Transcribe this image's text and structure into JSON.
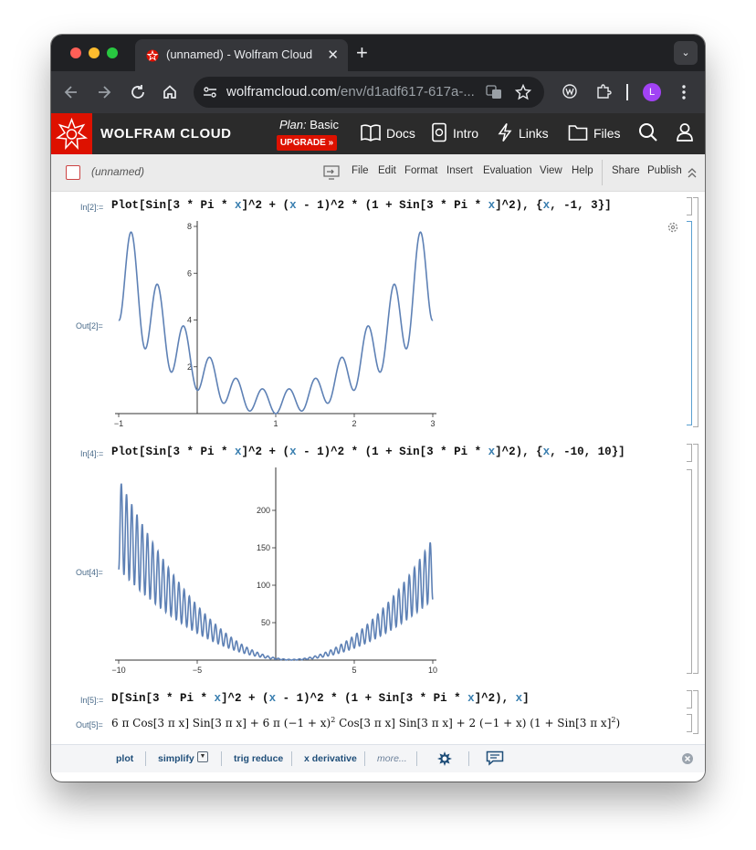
{
  "browser": {
    "tab_title": "(unnamed) - Wolfram Cloud",
    "tab_close": "✕",
    "new_tab": "+",
    "tab_menu": "⌄",
    "url_host": "wolframcloud.com",
    "url_path": "/env/d1adf617-617a-...",
    "profile_initial": "L"
  },
  "header": {
    "brand": "WOLFRAM CLOUD",
    "plan_label": "Plan:",
    "plan_value": "Basic",
    "upgrade": "UPGRADE »",
    "nav": [
      "Docs",
      "Intro",
      "Links",
      "Files"
    ]
  },
  "notebook_bar": {
    "name": "(unnamed)",
    "menus": [
      "File",
      "Edit",
      "Format",
      "Insert",
      "Evaluation",
      "View",
      "Help"
    ],
    "share": "Share",
    "publish": "Publish"
  },
  "cells": {
    "in2_label": "In[2]:=",
    "out2_label": "Out[2]=",
    "in4_label": "In[4]:=",
    "out4_label": "Out[4]=",
    "in5_label": "In[5]:=",
    "out5_label": "Out[5]="
  },
  "chart_data": [
    {
      "type": "line",
      "function": "Sin[3 Pi x]^2 + (x - 1)^2 (1 + Sin[3 Pi x]^2)",
      "x_range": [
        -1,
        3
      ],
      "ylim": [
        0,
        8
      ],
      "x_ticks": [
        "−1",
        "1",
        "2",
        "3"
      ],
      "y_ticks": [
        "2",
        "4",
        "6",
        "8"
      ],
      "color": "#5e81b5"
    },
    {
      "type": "line",
      "function": "Sin[3 Pi x]^2 + (x - 1)^2 (1 + Sin[3 Pi x]^2)",
      "x_range": [
        -10,
        10
      ],
      "ylim": [
        0,
        250
      ],
      "x_ticks": [
        "−10",
        "−5",
        "5",
        "10"
      ],
      "y_ticks": [
        "50",
        "100",
        "150",
        "200"
      ],
      "color": "#5e81b5"
    }
  ],
  "suggestions": {
    "items": [
      "plot",
      "simplify",
      "trig reduce",
      "x derivative",
      "more..."
    ]
  },
  "colors": {
    "wolfram_red": "#dd1100",
    "plot_blue": "#5e81b5",
    "variable_blue": "#3a7fb0"
  }
}
